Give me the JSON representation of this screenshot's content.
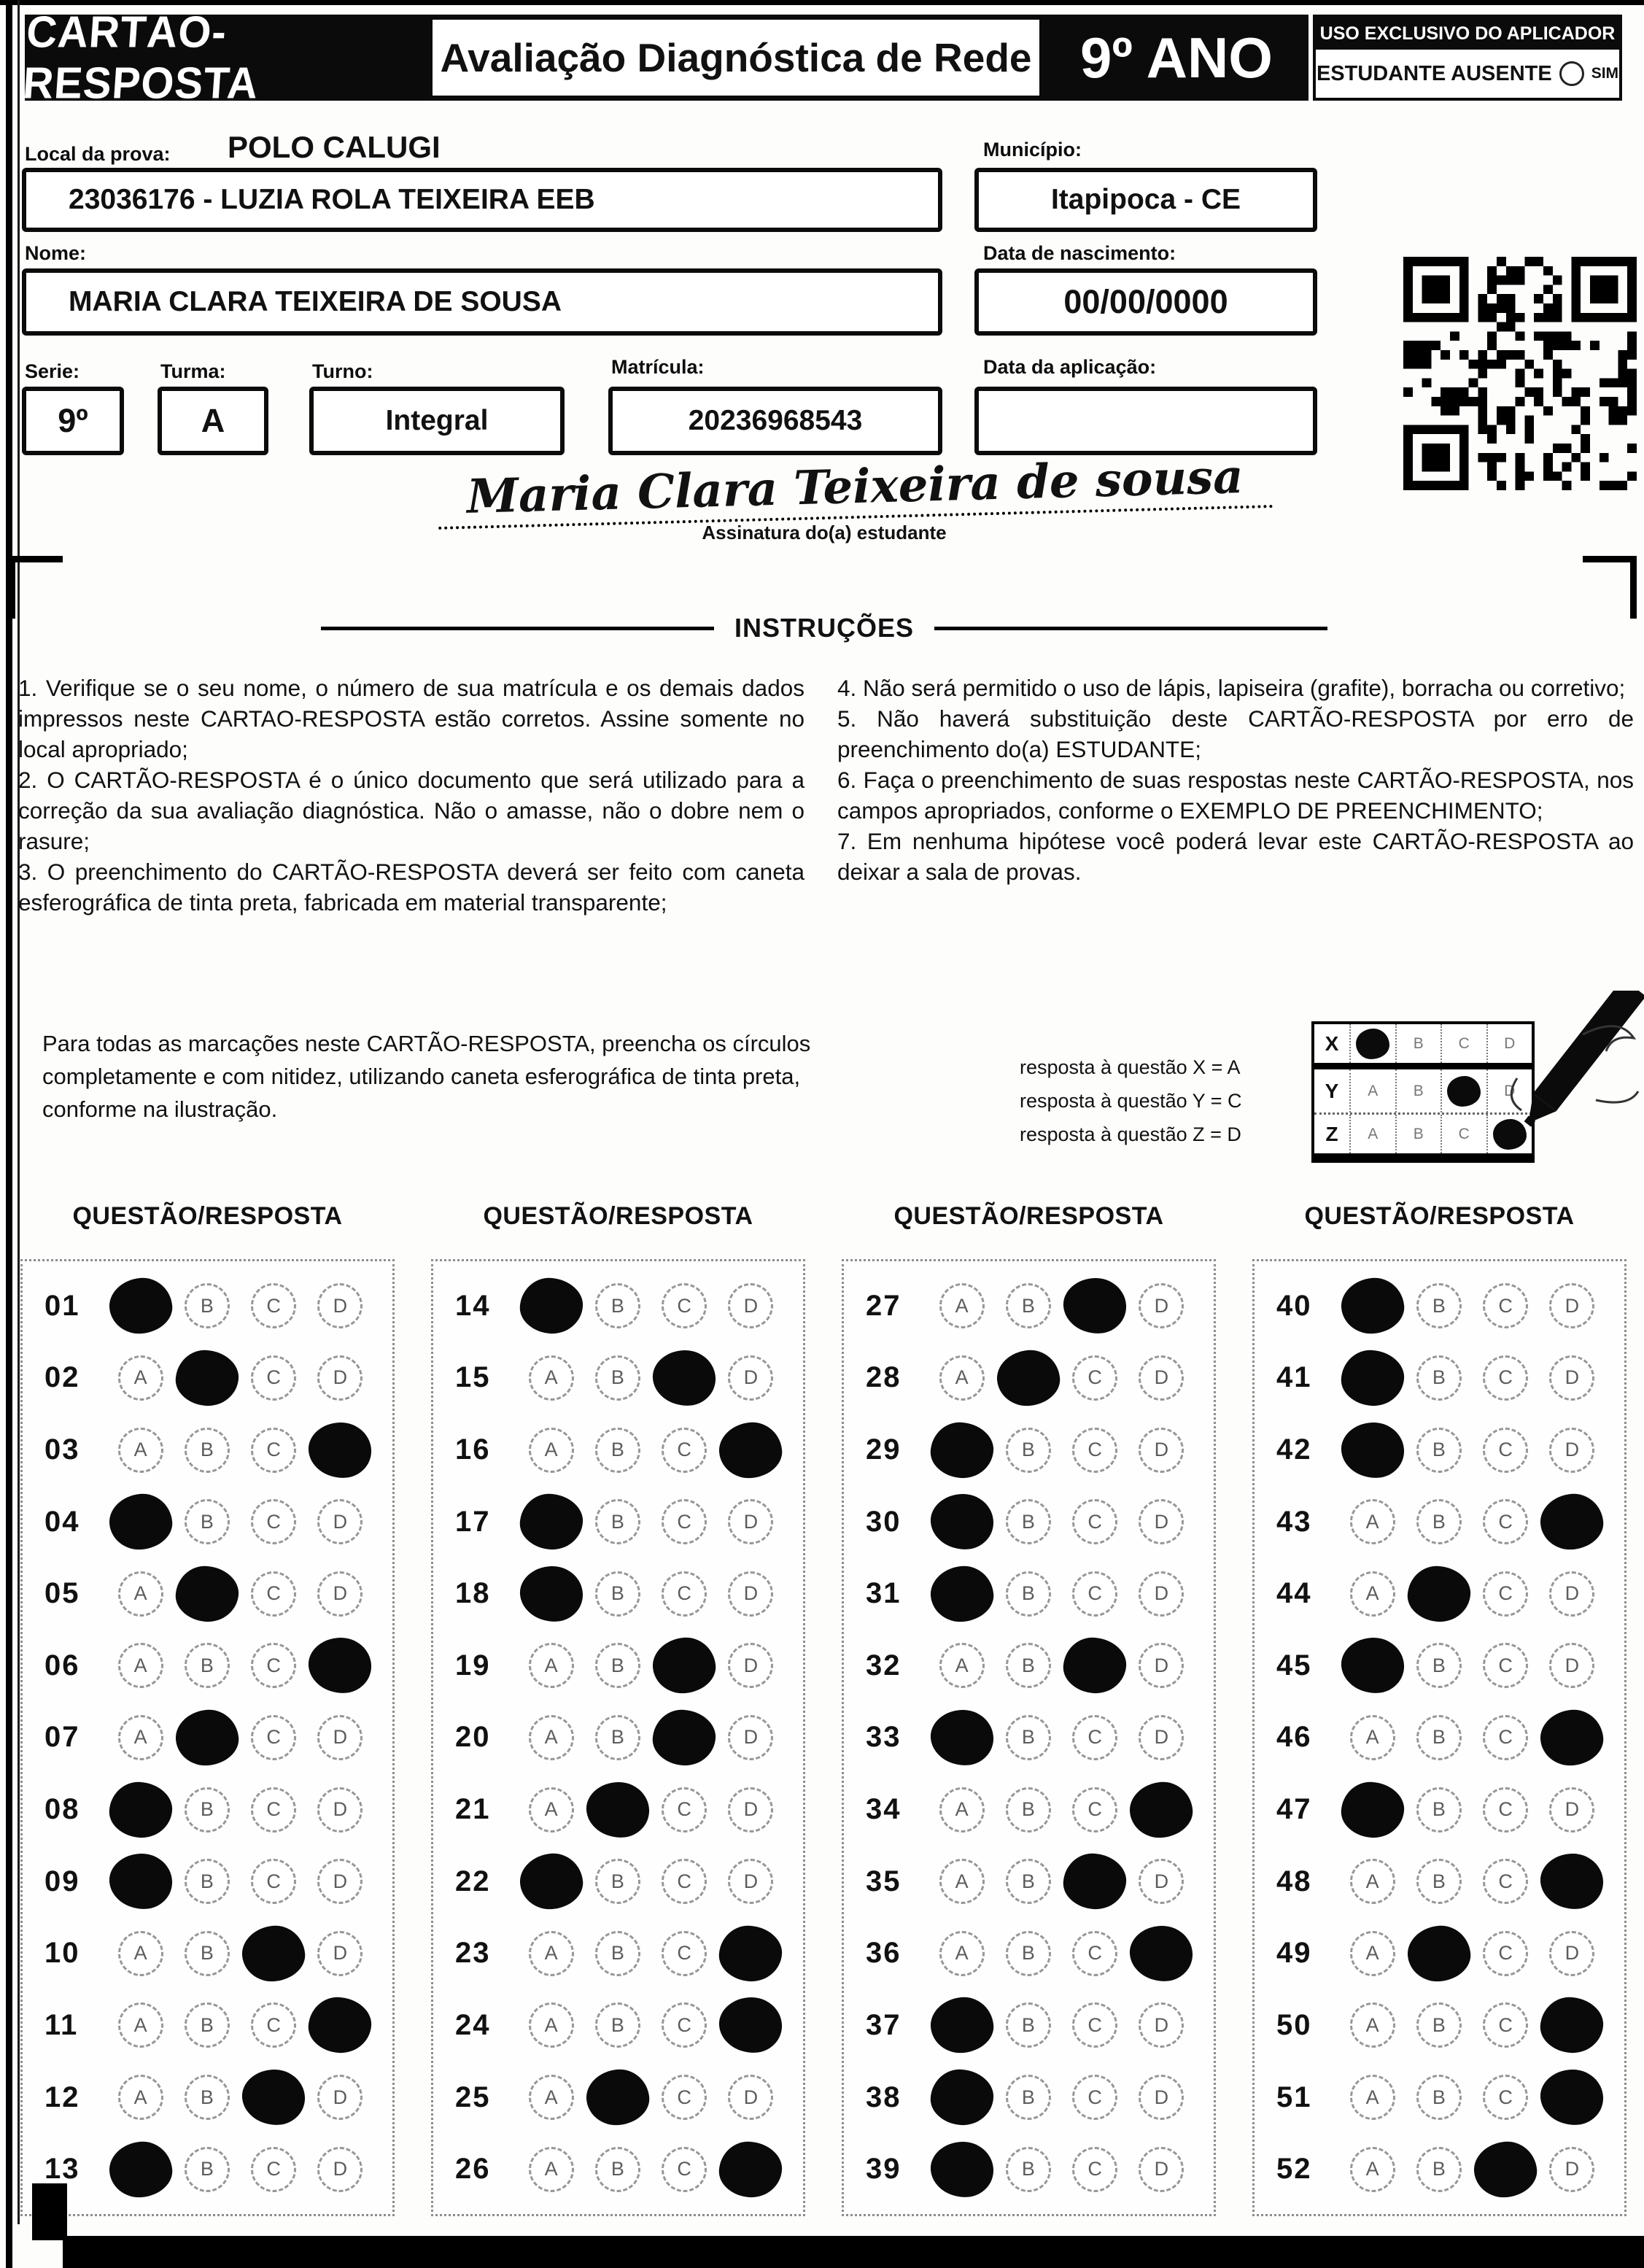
{
  "header": {
    "card_title": "CARTÃO-RESPOSTA",
    "exam_title": "Avaliação Diagnóstica de Rede",
    "grade": "9º ANO",
    "applicator_box_title": "USO EXCLUSIVO DO APLICADOR",
    "absent_label": "ESTUDANTE AUSENTE",
    "absent_option": "SIM"
  },
  "form": {
    "local_label": "Local da prova:",
    "local_value": "POLO CALUGI",
    "school_value": "23036176 - LUZIA ROLA TEIXEIRA EEB",
    "municipio_label": "Município:",
    "municipio_value": "Itapipoca - CE",
    "nome_label": "Nome:",
    "nome_value": "MARIA CLARA TEIXEIRA DE SOUSA",
    "nascimento_label": "Data de nascimento:",
    "nascimento_value": "00/00/0000",
    "serie_label": "Serie:",
    "serie_value": "9º",
    "turma_label": "Turma:",
    "turma_value": "A",
    "turno_label": "Turno:",
    "turno_value": "Integral",
    "matricula_label": "Matrícula:",
    "matricula_value": "20236968543",
    "aplicacao_label": "Data da aplicação:",
    "aplicacao_value": ""
  },
  "signature": {
    "value": "Maria Clara Teixeira de sousa",
    "caption": "Assinatura do(a) estudante"
  },
  "instructions": {
    "title": "INSTRUÇÕES",
    "left_items": [
      "1. Verifique se o seu nome, o número de sua matrícula e os demais dados impressos neste CARTAO-RESPOSTA estão corretos. Assine somente no local apropriado;",
      "2. O CARTÃO-RESPOSTA é o único documento que será utilizado para a correção da sua avaliação diagnóstica. Não o amasse, não o dobre nem o rasure;",
      "3. O preenchimento do CARTÃO-RESPOSTA deverá ser feito com caneta esferográfica de tinta preta, fabricada em material transparente;"
    ],
    "right_items": [
      "4. Não será permitido o uso de lápis, lapiseira (grafite), borracha ou corretivo;",
      "5. Não haverá substituição deste CARTÃO-RESPOSTA por erro de preenchimento do(a) ESTUDANTE;",
      "6. Faça o preenchimento de suas respostas neste CARTÃO-RESPOSTA, nos campos apropriados, conforme o EXEMPLO DE PREENCHIMENTO;",
      "7. Em nenhuma hipótese você poderá levar este CARTÃO-RESPOSTA ao deixar a sala de provas."
    ]
  },
  "example": {
    "note": "Para todas as marcações neste CARTÃO-RESPOSTA, preencha os círculos completamente e com nitidez, utilizando caneta esferográfica de tinta preta, conforme na ilustração.",
    "legend": [
      "resposta à questão X = A",
      "resposta à questão Y = C",
      "resposta à questão Z = D"
    ],
    "grid": {
      "options": [
        "A",
        "B",
        "C",
        "D"
      ],
      "rows": [
        {
          "label": "X",
          "filled": "A"
        },
        {
          "label": "Y",
          "filled": "C"
        },
        {
          "label": "Z",
          "filled": "D"
        }
      ]
    }
  },
  "answers": {
    "column_header": "QUESTÃO/RESPOSTA",
    "options": [
      "A",
      "B",
      "C",
      "D"
    ],
    "columns": [
      {
        "questions": [
          {
            "n": "01",
            "marked": "A"
          },
          {
            "n": "02",
            "marked": "B"
          },
          {
            "n": "03",
            "marked": "D"
          },
          {
            "n": "04",
            "marked": "A"
          },
          {
            "n": "05",
            "marked": "B"
          },
          {
            "n": "06",
            "marked": "D"
          },
          {
            "n": "07",
            "marked": "B"
          },
          {
            "n": "08",
            "marked": "A"
          },
          {
            "n": "09",
            "marked": "A"
          },
          {
            "n": "10",
            "marked": "C"
          },
          {
            "n": "11",
            "marked": "D"
          },
          {
            "n": "12",
            "marked": "C"
          },
          {
            "n": "13",
            "marked": "A"
          }
        ]
      },
      {
        "questions": [
          {
            "n": "14",
            "marked": "A"
          },
          {
            "n": "15",
            "marked": "C"
          },
          {
            "n": "16",
            "marked": "D"
          },
          {
            "n": "17",
            "marked": "A"
          },
          {
            "n": "18",
            "marked": "A"
          },
          {
            "n": "19",
            "marked": "C"
          },
          {
            "n": "20",
            "marked": "C"
          },
          {
            "n": "21",
            "marked": "B"
          },
          {
            "n": "22",
            "marked": "A"
          },
          {
            "n": "23",
            "marked": "D"
          },
          {
            "n": "24",
            "marked": "D"
          },
          {
            "n": "25",
            "marked": "B"
          },
          {
            "n": "26",
            "marked": "D"
          }
        ]
      },
      {
        "questions": [
          {
            "n": "27",
            "marked": "C"
          },
          {
            "n": "28",
            "marked": "B"
          },
          {
            "n": "29",
            "marked": "A"
          },
          {
            "n": "30",
            "marked": "A"
          },
          {
            "n": "31",
            "marked": "A"
          },
          {
            "n": "32",
            "marked": "C"
          },
          {
            "n": "33",
            "marked": "A"
          },
          {
            "n": "34",
            "marked": "D"
          },
          {
            "n": "35",
            "marked": "C"
          },
          {
            "n": "36",
            "marked": "D"
          },
          {
            "n": "37",
            "marked": "A"
          },
          {
            "n": "38",
            "marked": "A"
          },
          {
            "n": "39",
            "marked": "A"
          }
        ]
      },
      {
        "questions": [
          {
            "n": "40",
            "marked": "A"
          },
          {
            "n": "41",
            "marked": "A"
          },
          {
            "n": "42",
            "marked": "A"
          },
          {
            "n": "43",
            "marked": "D"
          },
          {
            "n": "44",
            "marked": "B"
          },
          {
            "n": "45",
            "marked": "A"
          },
          {
            "n": "46",
            "marked": "D"
          },
          {
            "n": "47",
            "marked": "A"
          },
          {
            "n": "48",
            "marked": "D"
          },
          {
            "n": "49",
            "marked": "B"
          },
          {
            "n": "50",
            "marked": "D"
          },
          {
            "n": "51",
            "marked": "D"
          },
          {
            "n": "52",
            "marked": "C"
          }
        ]
      }
    ]
  }
}
